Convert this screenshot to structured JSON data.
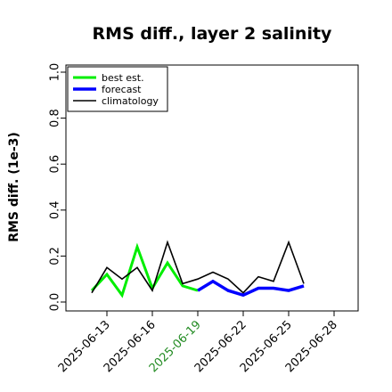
{
  "chart_data": {
    "type": "line",
    "title": "RMS diff., layer 2 salinity",
    "xlabel": "",
    "ylabel": "RMS diff. (1e-3)",
    "ylim": [
      0.0,
      1.0
    ],
    "yticks": [
      "0.0",
      "0.2",
      "0.4",
      "0.6",
      "0.8",
      "1.0"
    ],
    "xtick_labels": [
      "2025-06-13",
      "2025-06-16",
      "2025-06-19",
      "2025-06-22",
      "2025-06-25",
      "2025-06-28"
    ],
    "xtick_colors": [
      "#000000",
      "#000000",
      "#228b22",
      "#000000",
      "#000000",
      "#000000"
    ],
    "legend_position": "top-left",
    "grid": false,
    "x": [
      "2025-06-12",
      "2025-06-13",
      "2025-06-14",
      "2025-06-15",
      "2025-06-16",
      "2025-06-17",
      "2025-06-18",
      "2025-06-19",
      "2025-06-20",
      "2025-06-21",
      "2025-06-22",
      "2025-06-23",
      "2025-06-24",
      "2025-06-25",
      "2025-06-26"
    ],
    "series": [
      {
        "name": "best est.",
        "color": "#00ee00",
        "values": [
          0.05,
          0.12,
          0.03,
          0.24,
          0.06,
          0.17,
          0.07,
          0.05,
          null,
          null,
          null,
          null,
          null,
          null,
          null
        ]
      },
      {
        "name": "forecast",
        "color": "#0000ff",
        "values": [
          null,
          null,
          null,
          null,
          null,
          null,
          null,
          0.05,
          0.09,
          0.05,
          0.03,
          0.06,
          0.06,
          0.05,
          0.07
        ]
      },
      {
        "name": "climatology",
        "color": "#000000",
        "values": [
          0.04,
          0.15,
          0.1,
          0.15,
          0.05,
          0.26,
          0.08,
          0.1,
          0.13,
          0.1,
          0.04,
          0.11,
          0.09,
          0.26,
          0.08
        ]
      }
    ]
  }
}
